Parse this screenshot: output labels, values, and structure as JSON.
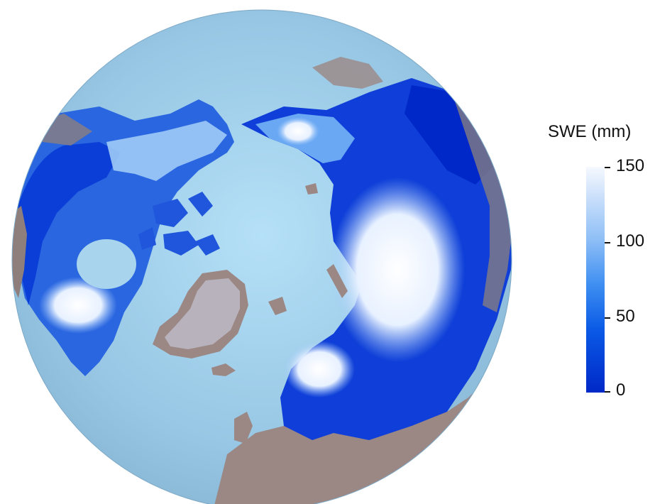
{
  "legend": {
    "title": "SWE (mm)",
    "ticks": [
      "150",
      "100",
      "50",
      "0"
    ],
    "min": 0,
    "max": 150,
    "colors": {
      "high": "#f6f9ff",
      "mid": "#3f8ff2",
      "low": "#0028c8"
    }
  },
  "map": {
    "projection": "polar stereographic (North Pole)",
    "ocean_color": "#9dc9e6",
    "land_color": "#9b8a86",
    "ice_color": "#b9b5bd"
  }
}
